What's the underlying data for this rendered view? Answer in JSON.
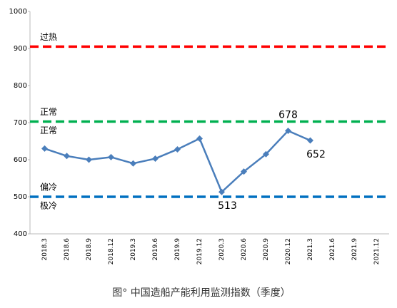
{
  "chart_data": {
    "type": "line",
    "caption": "图° 中国造船产能利用监测指数（季度）",
    "categories": [
      "2018.3",
      "2018.6",
      "2018.9",
      "2018.12",
      "2019.3",
      "2019.6",
      "2019.9",
      "2019.12",
      "2020.3",
      "2020.6",
      "2020.9",
      "2020.12",
      "2021.3",
      "2021.6",
      "2021.9",
      "2021.12"
    ],
    "series": [
      {
        "name": "指数",
        "color": "#4a7ebb",
        "values": [
          630,
          610,
          600,
          607,
          590,
          603,
          628,
          657,
          513,
          568,
          615,
          678,
          652,
          null,
          null,
          null
        ],
        "value_labels": [
          null,
          null,
          null,
          null,
          null,
          null,
          null,
          null,
          "513",
          null,
          null,
          "678",
          "652",
          null,
          null,
          null
        ]
      }
    ],
    "reference_lines": [
      {
        "value": 905,
        "color": "#ff0000",
        "labels": [
          "过热"
        ]
      },
      {
        "value": 703,
        "color": "#00b050",
        "labels": [
          "正常",
          "正常"
        ]
      },
      {
        "value": 500,
        "color": "#0070c0",
        "labels": [
          "偏冷",
          "极冷"
        ]
      }
    ],
    "ylim": [
      400,
      1000
    ],
    "yticks": [
      400,
      500,
      600,
      700,
      800,
      900,
      1000
    ],
    "grid": false
  }
}
